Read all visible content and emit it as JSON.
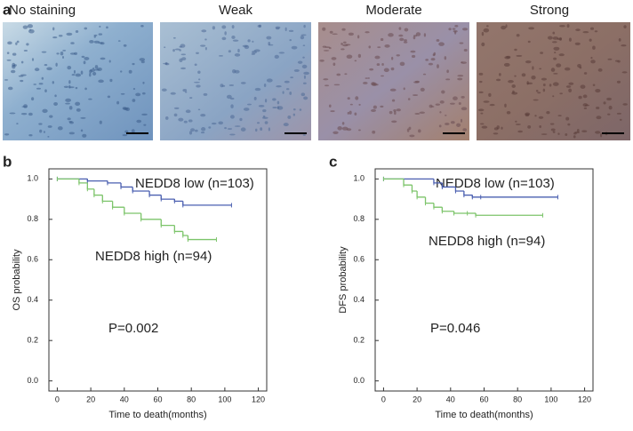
{
  "panel_a": {
    "label": "a",
    "images": [
      {
        "title": "No staining"
      },
      {
        "title": "Weak"
      },
      {
        "title": "Moderate"
      },
      {
        "title": "Strong"
      }
    ]
  },
  "chart_data": [
    {
      "type": "line",
      "label": "b",
      "step": true,
      "xlabel": "Time to death(months)",
      "ylabel": "OS probability",
      "annotations": [
        "NEDD8 low (n=103)",
        "NEDD8 high (n=94)",
        "P=0.002"
      ],
      "xlim": [
        -5,
        125
      ],
      "ylim": [
        -0.05,
        1.05
      ],
      "xticks": [
        0,
        20,
        40,
        60,
        80,
        100,
        120
      ],
      "yticks": [
        {
          "value": 0,
          "label": "0.0"
        },
        0.2,
        0.4,
        0.6,
        0.8,
        {
          "value": 1,
          "label": "1.0"
        }
      ],
      "series": [
        {
          "name": "NEDD8 low",
          "color": "#4a5fb0",
          "x": [
            0,
            18,
            30,
            38,
            45,
            55,
            62,
            70,
            75,
            104
          ],
          "values": [
            1.0,
            0.99,
            0.98,
            0.96,
            0.94,
            0.92,
            0.9,
            0.89,
            0.87,
            0.87
          ]
        },
        {
          "name": "NEDD8 high",
          "color": "#7cc46a",
          "x": [
            0,
            13,
            18,
            22,
            27,
            33,
            40,
            50,
            62,
            70,
            75,
            78,
            95
          ],
          "values": [
            1.0,
            0.98,
            0.95,
            0.92,
            0.89,
            0.86,
            0.83,
            0.8,
            0.77,
            0.74,
            0.72,
            0.7,
            0.7
          ]
        }
      ]
    },
    {
      "type": "line",
      "label": "c",
      "step": true,
      "xlabel": "Time to death(months)",
      "ylabel": "DFS probability",
      "annotations": [
        "NEDD8 low (n=103)",
        "NEDD8 high (n=94)",
        "P=0.046"
      ],
      "xlim": [
        -5,
        125
      ],
      "ylim": [
        -0.05,
        1.05
      ],
      "xticks": [
        0,
        20,
        40,
        60,
        80,
        100,
        120
      ],
      "yticks": [
        {
          "value": 0,
          "label": "0.0"
        },
        0.2,
        0.4,
        0.6,
        0.8,
        {
          "value": 1,
          "label": "1.0"
        }
      ],
      "series": [
        {
          "name": "NEDD8 low",
          "color": "#4a5fb0",
          "x": [
            0,
            30,
            35,
            43,
            48,
            53,
            58,
            104
          ],
          "values": [
            1.0,
            0.98,
            0.96,
            0.94,
            0.92,
            0.91,
            0.91,
            0.91
          ]
        },
        {
          "name": "NEDD8 high",
          "color": "#7cc46a",
          "x": [
            0,
            12,
            17,
            20,
            25,
            30,
            35,
            42,
            50,
            55,
            95
          ],
          "values": [
            1.0,
            0.97,
            0.94,
            0.91,
            0.88,
            0.86,
            0.84,
            0.83,
            0.83,
            0.82,
            0.82
          ]
        }
      ]
    }
  ]
}
